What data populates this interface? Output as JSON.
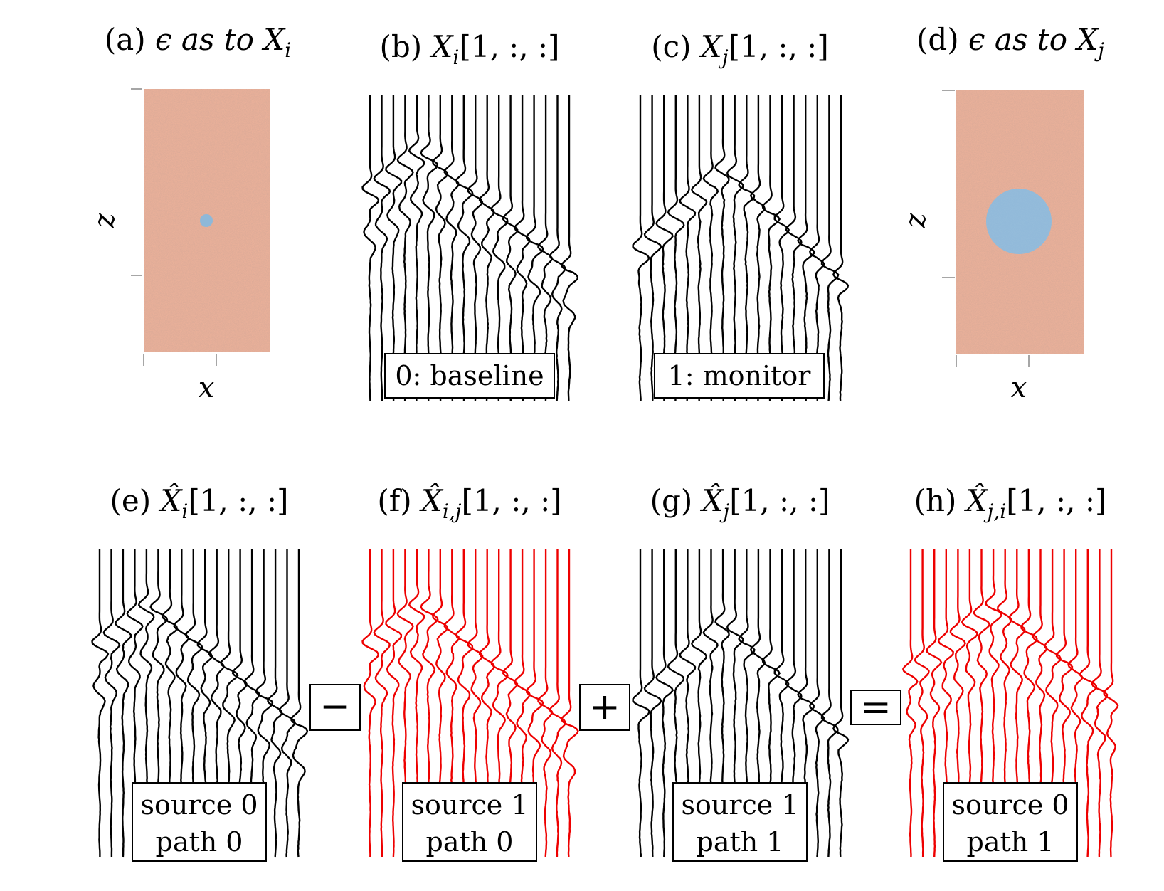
{
  "colors": {
    "trace_black": "#000000",
    "trace_red": "#ee0000",
    "permittivity_background": "#f0b39a",
    "permittivity_inclusion": "#8fb8d8",
    "box_border": "#000000"
  },
  "model_panels": [
    {
      "id": "a",
      "title_prefix": "(a) ",
      "title_math": "ϵ as to X",
      "title_sub": "i",
      "xlabel": "x",
      "ylabel": "z",
      "inclusion_size": "small"
    },
    {
      "id": "d",
      "title_prefix": "(d) ",
      "title_math": "ϵ as to X",
      "title_sub": "j",
      "xlabel": "x",
      "ylabel": "z",
      "inclusion_size": "large"
    }
  ],
  "gather_panels": [
    {
      "id": "b",
      "title_prefix": "(b) ",
      "title_math": "X",
      "title_sub": "i",
      "title_hat": false,
      "title_index": "[1, :, :]",
      "box_lines": [
        "0:  baseline"
      ],
      "trace_color": "black",
      "event": "small"
    },
    {
      "id": "c",
      "title_prefix": "(c) ",
      "title_math": "X",
      "title_sub": "j",
      "title_hat": false,
      "title_index": "[1, :, :]",
      "box_lines": [
        "1:  monitor"
      ],
      "trace_color": "black",
      "event": "large"
    },
    {
      "id": "e",
      "title_prefix": "(e) ",
      "title_math": "X",
      "title_sub": "i",
      "title_hat": true,
      "title_index": "[1, :, :]",
      "box_lines": [
        "source 0",
        "path 0"
      ],
      "trace_color": "black",
      "event": "small"
    },
    {
      "id": "f",
      "title_prefix": "(f) ",
      "title_math": "X",
      "title_sub": "i,j",
      "title_hat": true,
      "title_index": "[1, :, :]",
      "box_lines": [
        "source 1",
        "path 0"
      ],
      "trace_color": "red",
      "event": "mixed"
    },
    {
      "id": "g",
      "title_prefix": "(g) ",
      "title_math": "X",
      "title_sub": "j",
      "title_hat": true,
      "title_index": "[1, :, :]",
      "box_lines": [
        "source 1",
        "path 1"
      ],
      "trace_color": "black",
      "event": "large"
    },
    {
      "id": "h",
      "title_prefix": "(h) ",
      "title_math": "X",
      "title_sub": "j,i",
      "title_hat": true,
      "title_index": "[1, :, :]",
      "box_lines": [
        "source 0",
        "path 1"
      ],
      "trace_color": "red",
      "event": "small"
    }
  ],
  "operators": [
    "−",
    "+",
    "="
  ],
  "traces_per_gather": 18
}
